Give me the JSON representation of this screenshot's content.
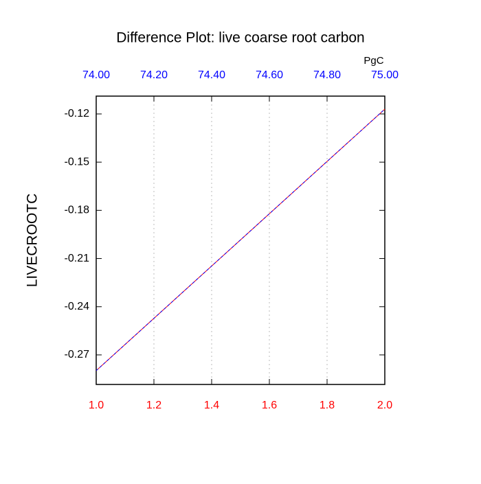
{
  "chart_data": {
    "type": "line",
    "title": "Difference Plot: live coarse root carbon",
    "ylabel": "LIVECROOTC",
    "x2label": "PgC",
    "x": [
      1,
      2
    ],
    "series": [
      {
        "color": "#ff0000",
        "values": [
          -0.2798,
          -0.117
        ]
      },
      {
        "color": "#0000ff",
        "values": [
          -0.2798,
          -0.117
        ]
      }
    ],
    "xlim": [
      1,
      2
    ],
    "xticks": [
      {
        "value": 1,
        "label": "1.0"
      },
      1.2,
      1.4,
      1.6,
      1.8,
      {
        "value": 2,
        "label": "2.0"
      }
    ],
    "xtick_color": "#ff0000",
    "x2lim": [
      74,
      75
    ],
    "x2ticks": [
      {
        "value": 74,
        "label": "74.00"
      },
      {
        "value": 74.2,
        "label": "74.20"
      },
      {
        "value": 74.4,
        "label": "74.40"
      },
      {
        "value": 74.6,
        "label": "74.60"
      },
      {
        "value": 74.8,
        "label": "74.80"
      },
      {
        "value": 75,
        "label": "75.00"
      }
    ],
    "x2tick_color": "#0000ff",
    "ylim": [
      -0.2884,
      -0.1089
    ],
    "yticks": [
      -0.12,
      -0.15,
      -0.18,
      -0.21,
      -0.24,
      -0.27
    ],
    "grid": "x"
  }
}
